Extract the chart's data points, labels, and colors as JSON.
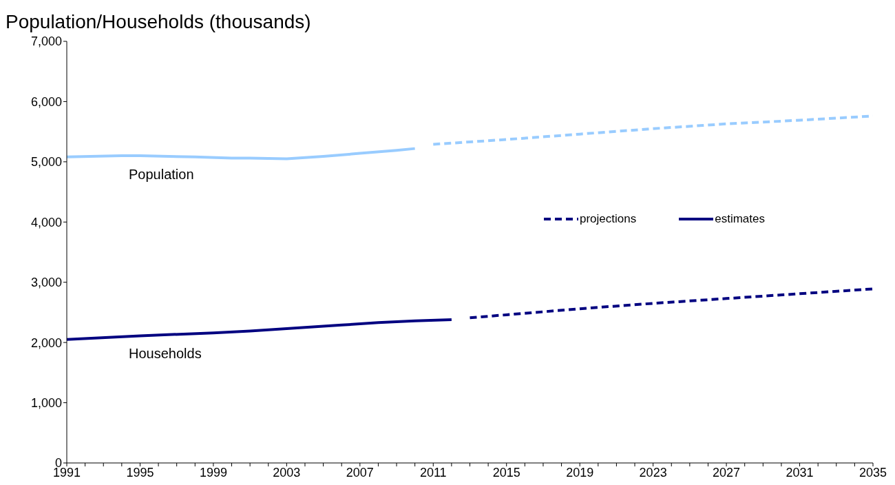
{
  "chart_data": {
    "type": "line",
    "ylabel": "Population/Households (thousands)",
    "xlim": [
      1991,
      2035
    ],
    "xticks": [
      1991,
      {
        "value": 1992,
        "label": null
      },
      {
        "value": 1993,
        "label": null
      },
      {
        "value": 1994,
        "label": null
      },
      1995,
      {
        "value": 1996,
        "label": null
      },
      {
        "value": 1997,
        "label": null
      },
      {
        "value": 1998,
        "label": null
      },
      1999,
      {
        "value": 2000,
        "label": null
      },
      {
        "value": 2001,
        "label": null
      },
      {
        "value": 2002,
        "label": null
      },
      2003,
      {
        "value": 2004,
        "label": null
      },
      {
        "value": 2005,
        "label": null
      },
      {
        "value": 2006,
        "label": null
      },
      2007,
      {
        "value": 2008,
        "label": null
      },
      {
        "value": 2009,
        "label": null
      },
      {
        "value": 2010,
        "label": null
      },
      2011,
      {
        "value": 2012,
        "label": null
      },
      {
        "value": 2013,
        "label": null
      },
      {
        "value": 2014,
        "label": null
      },
      2015,
      {
        "value": 2016,
        "label": null
      },
      {
        "value": 2017,
        "label": null
      },
      {
        "value": 2018,
        "label": null
      },
      2019,
      {
        "value": 2020,
        "label": null
      },
      {
        "value": 2021,
        "label": null
      },
      {
        "value": 2022,
        "label": null
      },
      2023,
      {
        "value": 2024,
        "label": null
      },
      {
        "value": 2025,
        "label": null
      },
      {
        "value": 2026,
        "label": null
      },
      2027,
      {
        "value": 2028,
        "label": null
      },
      {
        "value": 2029,
        "label": null
      },
      {
        "value": 2030,
        "label": null
      },
      2031,
      {
        "value": 2032,
        "label": null
      },
      {
        "value": 2033,
        "label": null
      },
      {
        "value": 2034,
        "label": null
      },
      2035
    ],
    "ylim": [
      0,
      7000
    ],
    "yticks": [
      {
        "value": 0,
        "label": "0"
      },
      {
        "value": 1000,
        "label": "1,000"
      },
      {
        "value": 2000,
        "label": "2,000"
      },
      {
        "value": 3000,
        "label": "3,000"
      },
      {
        "value": 4000,
        "label": "4,000"
      },
      {
        "value": 5000,
        "label": "5,000"
      },
      {
        "value": 6000,
        "label": "6,000"
      },
      {
        "value": 7000,
        "label": "7,000"
      }
    ],
    "legend": "right",
    "series": [
      {
        "color": "#99ccff",
        "line_style": "solid",
        "x": [
          1991,
          1994,
          1995,
          1998,
          2000,
          2001,
          2003,
          2005,
          2007,
          2009,
          2010
        ],
        "values": [
          5080,
          5100,
          5100,
          5080,
          5060,
          5060,
          5050,
          5090,
          5140,
          5190,
          5220
        ]
      },
      {
        "color": "#99ccff",
        "line_style": "dashed",
        "x": [
          2011,
          2012,
          2015,
          2019,
          2023,
          2027,
          2031,
          2035
        ],
        "values": [
          5290,
          5310,
          5370,
          5460,
          5550,
          5630,
          5690,
          5760
        ]
      },
      {
        "name": "estimates",
        "color": "#000080",
        "line_style": "solid",
        "x": [
          1991,
          1995,
          1999,
          2001,
          2003,
          2006,
          2008,
          2010,
          2012
        ],
        "values": [
          2050,
          2110,
          2160,
          2190,
          2230,
          2290,
          2330,
          2360,
          2380
        ]
      },
      {
        "name": "projections",
        "color": "#000080",
        "line_style": "dashed",
        "x": [
          2013,
          2015,
          2019,
          2023,
          2027,
          2031,
          2035
        ],
        "values": [
          2410,
          2460,
          2560,
          2650,
          2730,
          2810,
          2890
        ]
      }
    ],
    "annotations": [
      "Population",
      "Households"
    ]
  }
}
